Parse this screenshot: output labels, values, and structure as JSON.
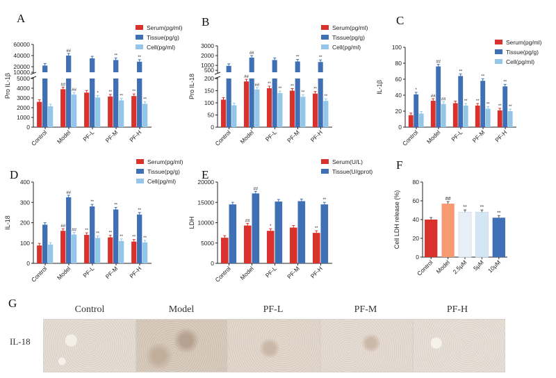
{
  "figure": {
    "panel_letters": [
      "A",
      "B",
      "C",
      "D",
      "E",
      "F",
      "G"
    ],
    "histology": {
      "letter": "G",
      "row_label": "IL-18",
      "columns": [
        "Control",
        "Model",
        "PF-L",
        "PF-M",
        "PF-H"
      ]
    }
  },
  "colors": {
    "serum": "#d9312b",
    "tissue": "#3f6fb5",
    "cell": "#93c6e8",
    "f_bars": [
      "#d9312b",
      "#f59a72",
      "#e8eef6",
      "#d3e6f3",
      "#3f6fb5"
    ]
  },
  "chart_data": [
    {
      "id": "A",
      "type": "bar",
      "broken_axis": true,
      "ylabel": "Pro IL-1β",
      "categories": [
        "Control",
        "Model",
        "PF-L",
        "PF-M",
        "PF-H"
      ],
      "ylim_lower": [
        0,
        5000
      ],
      "lower_ticks": [
        "0",
        "1000",
        "2000",
        "3000",
        "4000",
        "5000"
      ],
      "ylim_upper": [
        10000,
        60000
      ],
      "upper_ticks": [
        "10000",
        "20000",
        "40000",
        "60000"
      ],
      "series": [
        {
          "name": "Serum(pg/ml)",
          "values": [
            2600,
            3900,
            3550,
            3150,
            3200
          ],
          "marks": [
            "",
            "##",
            "",
            "**",
            "**"
          ]
        },
        {
          "name": "Tissue(pg/g)",
          "values": [
            22000,
            40000,
            35000,
            32000,
            29000
          ],
          "marks": [
            "",
            "##",
            "",
            "**",
            "**"
          ]
        },
        {
          "name": "Cell(pg/ml)",
          "values": [
            2150,
            3350,
            3050,
            2750,
            2400
          ],
          "marks": [
            "",
            "##",
            "*",
            "**",
            "**"
          ]
        }
      ]
    },
    {
      "id": "B",
      "type": "bar",
      "broken_axis": true,
      "ylabel": "Pro IL-18",
      "categories": [
        "Control",
        "Model",
        "PF-L",
        "PF-M",
        "PF-H"
      ],
      "ylim_lower": [
        0,
        200
      ],
      "lower_ticks": [
        "0",
        "50",
        "100",
        "150",
        "200"
      ],
      "ylim_upper": [
        300,
        3000
      ],
      "upper_ticks": [
        "500",
        "1000",
        "2000",
        "3000"
      ],
      "series": [
        {
          "name": "Serum(pg/ml)",
          "values": [
            113,
            188,
            160,
            150,
            138
          ],
          "marks": [
            "",
            "##",
            "**",
            "**",
            "**"
          ]
        },
        {
          "name": "Tissue(pg/g)",
          "values": [
            950,
            1800,
            1550,
            1400,
            1350
          ],
          "marks": [
            "",
            "##",
            "",
            "**",
            "**"
          ]
        },
        {
          "name": "Cell(pg/ml)",
          "values": [
            90,
            155,
            140,
            125,
            108
          ],
          "marks": [
            "",
            "##",
            "**",
            "**",
            "**"
          ]
        }
      ]
    },
    {
      "id": "C",
      "type": "bar",
      "ylabel": "IL-1β",
      "categories": [
        "Control",
        "Model",
        "PF-L",
        "PF-M",
        "PF-H"
      ],
      "ylim": [
        0,
        100
      ],
      "ticks": [
        "0",
        "20",
        "40",
        "60",
        "80",
        "100"
      ],
      "series": [
        {
          "name": "Serum(pg/ml)",
          "values": [
            15,
            33,
            30,
            27,
            21
          ],
          "marks": [
            "",
            "##",
            "",
            "**",
            "**"
          ]
        },
        {
          "name": "Tissue(pg/g)",
          "values": [
            41,
            76,
            64,
            58,
            51
          ],
          "marks": [
            "*",
            "##",
            "**",
            "**",
            "**"
          ]
        },
        {
          "name": "Cell(pg/ml)",
          "values": [
            17,
            29,
            27,
            23,
            20
          ],
          "marks": [
            "",
            "##",
            "**",
            "**",
            "**"
          ]
        }
      ]
    },
    {
      "id": "D",
      "type": "bar",
      "ylabel": "IL-18",
      "categories": [
        "Control",
        "Model",
        "PF-L",
        "PF-M",
        "PF-H"
      ],
      "ylim": [
        0,
        400
      ],
      "ticks": [
        "0",
        "100",
        "200",
        "300",
        "400"
      ],
      "series": [
        {
          "name": "Serum(pg/ml)",
          "values": [
            88,
            160,
            140,
            128,
            107
          ],
          "marks": [
            "",
            "##",
            "**",
            "**",
            "**"
          ]
        },
        {
          "name": "Tissue(pg/g)",
          "values": [
            190,
            325,
            280,
            265,
            240
          ],
          "marks": [
            "",
            "##",
            "**",
            "**",
            "**"
          ]
        },
        {
          "name": "Cell(pg/ml)",
          "values": [
            92,
            142,
            125,
            110,
            103
          ],
          "marks": [
            "",
            "##",
            "**",
            "**",
            "**"
          ]
        }
      ]
    },
    {
      "id": "E",
      "type": "bar",
      "ylabel": "LDH",
      "categories": [
        "Control",
        "Model",
        "PF-L",
        "PF-M",
        "PF-H"
      ],
      "ylim": [
        0,
        20000
      ],
      "ticks": [
        "0",
        "5000",
        "10000",
        "15000",
        "20000"
      ],
      "series": [
        {
          "name": "Serum(U/L)",
          "values": [
            6300,
            9300,
            8000,
            8800,
            7500
          ],
          "marks": [
            "",
            "##",
            "*",
            "",
            "**"
          ]
        },
        {
          "name": "Tissue(U/gprot)",
          "values": [
            14500,
            17200,
            15200,
            15300,
            14500
          ],
          "marks": [
            "",
            "##",
            "",
            "",
            "**"
          ]
        }
      ]
    },
    {
      "id": "F",
      "type": "bar",
      "ylabel": "Cell LDH release (%)",
      "categories": [
        "Control",
        "Model",
        "2.5μM",
        "5μM",
        "10μM"
      ],
      "ylim": [
        0,
        80
      ],
      "ticks": [
        "0",
        "20",
        "40",
        "60",
        "80"
      ],
      "values": [
        40,
        57,
        48,
        48,
        42
      ],
      "marks": [
        "",
        "##",
        "**",
        "**",
        "**"
      ]
    }
  ]
}
